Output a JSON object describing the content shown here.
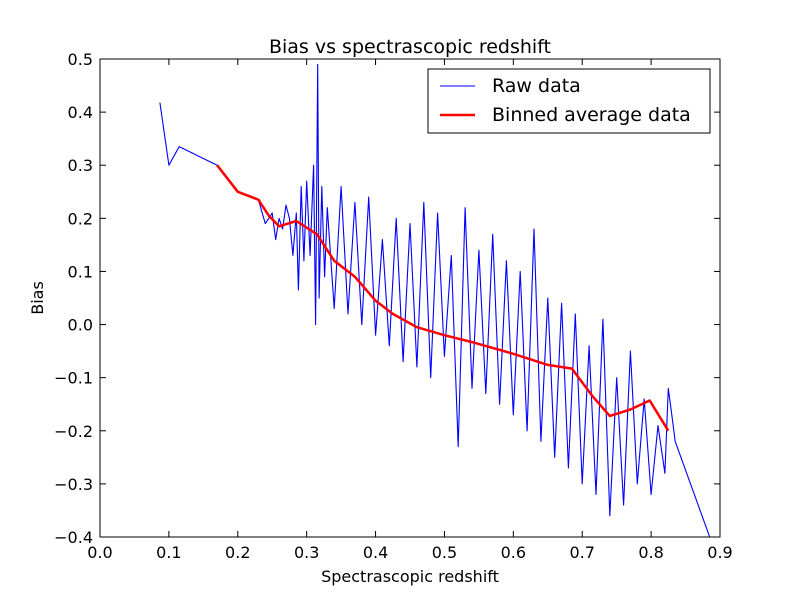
{
  "chart_data": {
    "type": "line",
    "title": "Bias vs spectrascopic redshift",
    "xlabel": "Spectrascopic redshift",
    "ylabel": "Bias",
    "xlim": [
      0.0,
      0.9
    ],
    "ylim": [
      -0.4,
      0.5
    ],
    "xticks": [
      "0.0",
      "0.1",
      "0.2",
      "0.3",
      "0.4",
      "0.5",
      "0.6",
      "0.7",
      "0.8",
      "0.9"
    ],
    "yticks": [
      "−0.4",
      "−0.3",
      "−0.2",
      "−0.1",
      "0.0",
      "0.1",
      "0.2",
      "0.3",
      "0.4",
      "0.5"
    ],
    "grid": false,
    "legend": {
      "position": "top-right"
    },
    "series": [
      {
        "name": "Raw data",
        "color": "#0000ff",
        "style": "thin-line",
        "x": [
          0.087,
          0.1,
          0.115,
          0.17,
          0.2,
          0.23,
          0.24,
          0.245,
          0.25,
          0.255,
          0.26,
          0.265,
          0.27,
          0.275,
          0.28,
          0.285,
          0.288,
          0.292,
          0.296,
          0.3,
          0.305,
          0.31,
          0.313,
          0.316,
          0.318,
          0.322,
          0.326,
          0.33,
          0.34,
          0.35,
          0.36,
          0.37,
          0.38,
          0.39,
          0.4,
          0.41,
          0.42,
          0.43,
          0.44,
          0.45,
          0.46,
          0.47,
          0.48,
          0.49,
          0.5,
          0.51,
          0.52,
          0.53,
          0.54,
          0.55,
          0.56,
          0.57,
          0.58,
          0.59,
          0.6,
          0.61,
          0.62,
          0.63,
          0.64,
          0.65,
          0.66,
          0.67,
          0.68,
          0.69,
          0.7,
          0.71,
          0.72,
          0.73,
          0.74,
          0.75,
          0.76,
          0.77,
          0.78,
          0.79,
          0.8,
          0.81,
          0.82,
          0.825,
          0.83,
          0.835,
          0.885
        ],
        "y": [
          0.418,
          0.3,
          0.335,
          0.3,
          0.25,
          0.235,
          0.19,
          0.2,
          0.21,
          0.16,
          0.2,
          0.18,
          0.225,
          0.2,
          0.13,
          0.21,
          0.065,
          0.26,
          0.12,
          0.27,
          0.13,
          0.3,
          0.0,
          0.49,
          0.05,
          0.26,
          0.09,
          0.22,
          0.03,
          0.26,
          0.02,
          0.23,
          0.0,
          0.24,
          -0.02,
          0.16,
          -0.04,
          0.2,
          -0.07,
          0.19,
          -0.08,
          0.23,
          -0.1,
          0.21,
          -0.06,
          0.13,
          -0.23,
          0.22,
          -0.12,
          0.14,
          -0.13,
          0.17,
          -0.15,
          0.12,
          -0.17,
          0.1,
          -0.2,
          0.18,
          -0.22,
          0.05,
          -0.25,
          0.04,
          -0.27,
          0.02,
          -0.3,
          -0.04,
          -0.32,
          0.01,
          -0.36,
          -0.1,
          -0.34,
          -0.05,
          -0.3,
          -0.14,
          -0.32,
          -0.19,
          -0.28,
          -0.12,
          -0.17,
          -0.22,
          -0.4
        ]
      },
      {
        "name": "Binned average data",
        "color": "#ff0000",
        "style": "thick-line",
        "x": [
          0.17,
          0.2,
          0.23,
          0.245,
          0.26,
          0.285,
          0.315,
          0.34,
          0.37,
          0.4,
          0.425,
          0.46,
          0.5,
          0.54,
          0.6,
          0.65,
          0.685,
          0.715,
          0.74,
          0.77,
          0.798,
          0.825
        ],
        "y": [
          0.3,
          0.25,
          0.235,
          0.205,
          0.185,
          0.195,
          0.17,
          0.12,
          0.09,
          0.045,
          0.02,
          -0.005,
          -0.02,
          -0.033,
          -0.055,
          -0.076,
          -0.083,
          -0.135,
          -0.172,
          -0.16,
          -0.143,
          -0.2
        ]
      }
    ]
  }
}
